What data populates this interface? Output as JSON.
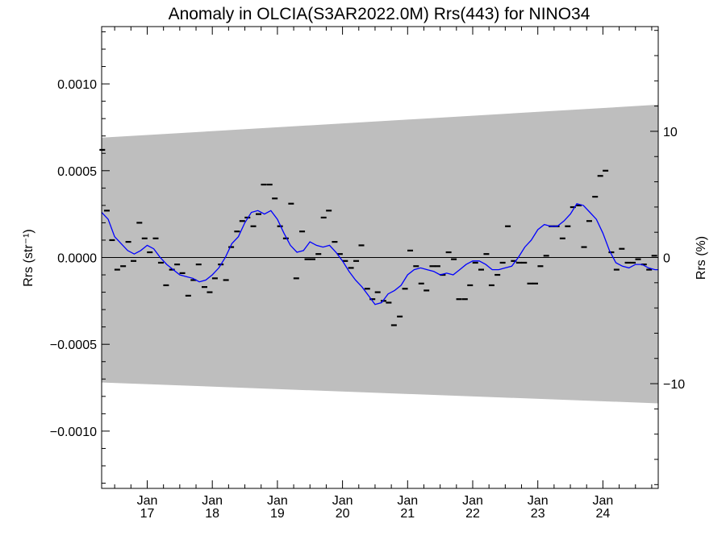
{
  "chart_data": {
    "type": "scatter",
    "title": "Anomaly in OLCIA(S3AR2022.0M) Rrs(443) for NINO34",
    "ylabel_left": "Rrs (str⁻¹)",
    "ylabel_right": "Rrs (%)",
    "xlabel": "",
    "xlim": [
      2016.3,
      2024.85
    ],
    "ylim": [
      -0.00133,
      0.00133
    ],
    "ylim_right_percent": [
      -18.3,
      18.3
    ],
    "grid": false,
    "zero_line": true,
    "y_ticks_left": [
      {
        "value": 0.001,
        "label": "0.0010"
      },
      {
        "value": 0.0005,
        "label": "0.0005"
      },
      {
        "value": 0.0,
        "label": "0.0000"
      },
      {
        "value": -0.0005,
        "label": "−0.0005"
      },
      {
        "value": -0.001,
        "label": "−0.0010"
      }
    ],
    "y_ticks_right": [
      {
        "value": 10,
        "label": "10"
      },
      {
        "value": 0,
        "label": "0"
      },
      {
        "value": -10,
        "label": "−10"
      }
    ],
    "x_ticks": [
      {
        "value": 2017.0,
        "month": "Jan",
        "year": "17"
      },
      {
        "value": 2018.0,
        "month": "Jan",
        "year": "18"
      },
      {
        "value": 2019.0,
        "month": "Jan",
        "year": "19"
      },
      {
        "value": 2020.0,
        "month": "Jan",
        "year": "20"
      },
      {
        "value": 2021.0,
        "month": "Jan",
        "year": "21"
      },
      {
        "value": 2022.0,
        "month": "Jan",
        "year": "22"
      },
      {
        "value": 2023.0,
        "month": "Jan",
        "year": "23"
      },
      {
        "value": 2024.0,
        "month": "Jan",
        "year": "24"
      }
    ],
    "band": {
      "x": [
        2016.3,
        2024.85
      ],
      "upper": [
        0.00069,
        0.00088
      ],
      "lower": [
        -0.00072,
        -0.00084
      ],
      "color": "#bebebe"
    },
    "series": [
      {
        "kind": "monthly-anomaly",
        "color": "#000000",
        "x": [
          2016.31,
          2016.38,
          2016.46,
          2016.54,
          2016.63,
          2016.71,
          2016.79,
          2016.88,
          2016.96,
          2017.04,
          2017.13,
          2017.21,
          2017.29,
          2017.38,
          2017.46,
          2017.54,
          2017.63,
          2017.71,
          2017.79,
          2017.88,
          2017.96,
          2018.04,
          2018.13,
          2018.21,
          2018.29,
          2018.38,
          2018.46,
          2018.54,
          2018.63,
          2018.71,
          2018.79,
          2018.88,
          2018.96,
          2019.04,
          2019.13,
          2019.21,
          2019.29,
          2019.38,
          2019.46,
          2019.54,
          2019.63,
          2019.71,
          2019.79,
          2019.88,
          2019.96,
          2020.04,
          2020.13,
          2020.21,
          2020.29,
          2020.38,
          2020.46,
          2020.54,
          2020.63,
          2020.71,
          2020.79,
          2020.88,
          2020.96,
          2021.04,
          2021.13,
          2021.21,
          2021.29,
          2021.38,
          2021.46,
          2021.54,
          2021.63,
          2021.71,
          2021.79,
          2021.88,
          2021.96,
          2022.04,
          2022.13,
          2022.21,
          2022.29,
          2022.38,
          2022.46,
          2022.54,
          2022.63,
          2022.71,
          2022.79,
          2022.88,
          2022.96,
          2023.04,
          2023.13,
          2023.21,
          2023.29,
          2023.38,
          2023.46,
          2023.54,
          2023.63,
          2023.71,
          2023.79,
          2023.88,
          2023.96,
          2024.04,
          2024.13,
          2024.21,
          2024.29,
          2024.38,
          2024.46,
          2024.54,
          2024.63,
          2024.71,
          2024.79
        ],
        "values": [
          0.00062,
          0.00027,
          0.0001,
          -7e-05,
          -5e-05,
          9e-05,
          -2e-05,
          0.0002,
          0.00011,
          3e-05,
          0.00011,
          -3e-05,
          -0.00016,
          -7e-05,
          -4e-05,
          -9e-05,
          -0.00022,
          -0.00013,
          -4e-05,
          -0.00017,
          -0.0002,
          -0.00012,
          -4e-05,
          -0.00013,
          6e-05,
          0.00015,
          0.00021,
          0.00023,
          0.00018,
          0.00025,
          0.00042,
          0.00042,
          0.00034,
          0.00018,
          0.00011,
          0.00031,
          -0.00012,
          0.00015,
          -1e-05,
          -1e-05,
          2e-05,
          0.00023,
          0.00027,
          9e-05,
          2e-05,
          -2e-05,
          -6e-05,
          -2e-05,
          7e-05,
          -0.00018,
          -0.00024,
          -0.0002,
          -0.00025,
          -0.00026,
          -0.00039,
          -0.00034,
          -0.00018,
          4e-05,
          -5e-05,
          -0.00015,
          -0.00019,
          -5e-05,
          -5e-05,
          -0.0001,
          3e-05,
          -1e-05,
          -0.00024,
          -0.00024,
          -0.00016,
          -3e-05,
          -7e-05,
          2e-05,
          -0.00016,
          -0.0001,
          -3e-05,
          0.00018,
          -2e-05,
          -3e-05,
          -3e-05,
          -0.00015,
          -0.00015,
          -5e-05,
          1e-05,
          0.00018,
          0.00018,
          0.00011,
          0.00018,
          0.00029,
          0.0003,
          6e-05,
          0.00021,
          0.00035,
          0.00047,
          0.0005,
          3e-05,
          -7e-05,
          5e-05,
          -3e-05,
          -3e-05,
          -1e-05,
          -4e-05,
          -7e-05,
          1e-05
        ]
      },
      {
        "kind": "running-mean",
        "color": "#0000ff",
        "x": [
          2016.3,
          2016.4,
          2016.5,
          2016.6,
          2016.7,
          2016.8,
          2016.9,
          2017.0,
          2017.1,
          2017.2,
          2017.3,
          2017.4,
          2017.5,
          2017.6,
          2017.7,
          2017.8,
          2017.9,
          2018.0,
          2018.1,
          2018.2,
          2018.3,
          2018.4,
          2018.5,
          2018.6,
          2018.7,
          2018.8,
          2018.9,
          2019.0,
          2019.1,
          2019.2,
          2019.3,
          2019.4,
          2019.5,
          2019.6,
          2019.7,
          2019.8,
          2019.9,
          2020.0,
          2020.1,
          2020.2,
          2020.3,
          2020.4,
          2020.5,
          2020.6,
          2020.7,
          2020.8,
          2020.9,
          2021.0,
          2021.1,
          2021.2,
          2021.3,
          2021.4,
          2021.5,
          2021.6,
          2021.7,
          2021.8,
          2021.9,
          2022.0,
          2022.1,
          2022.2,
          2022.3,
          2022.4,
          2022.5,
          2022.6,
          2022.7,
          2022.8,
          2022.9,
          2023.0,
          2023.1,
          2023.2,
          2023.3,
          2023.4,
          2023.5,
          2023.6,
          2023.7,
          2023.8,
          2023.9,
          2024.0,
          2024.1,
          2024.2,
          2024.3,
          2024.4,
          2024.5,
          2024.6,
          2024.7,
          2024.8,
          2024.85
        ],
        "values": [
          0.00026,
          0.00022,
          0.00012,
          8e-05,
          4e-05,
          2e-05,
          4e-05,
          7e-05,
          5e-05,
          0.0,
          -4e-05,
          -7e-05,
          -0.0001,
          -0.00011,
          -0.00012,
          -0.00014,
          -0.00013,
          -0.0001,
          -6e-05,
          0.0,
          8e-05,
          0.00012,
          0.0002,
          0.00026,
          0.00027,
          0.00025,
          0.00027,
          0.00022,
          0.00014,
          7e-05,
          3e-05,
          4e-05,
          9e-05,
          7e-05,
          6e-05,
          7e-05,
          3e-05,
          -2e-05,
          -8e-05,
          -0.00013,
          -0.00017,
          -0.00022,
          -0.00027,
          -0.00026,
          -0.00021,
          -0.00019,
          -0.00016,
          -0.0001,
          -7e-05,
          -6e-05,
          -7e-05,
          -8e-05,
          -0.0001,
          -9e-05,
          -0.0001,
          -7e-05,
          -4e-05,
          -2e-05,
          -2e-05,
          -4e-05,
          -7e-05,
          -7e-05,
          -6e-05,
          -5e-05,
          0.0,
          6e-05,
          0.0001,
          0.00016,
          0.00019,
          0.00018,
          0.00018,
          0.00021,
          0.00025,
          0.00031,
          0.0003,
          0.00026,
          0.00022,
          0.00014,
          4e-05,
          -3e-05,
          -5e-05,
          -6e-05,
          -4e-05,
          -4e-05,
          -6e-05,
          -7e-05,
          -7e-05
        ]
      }
    ]
  }
}
